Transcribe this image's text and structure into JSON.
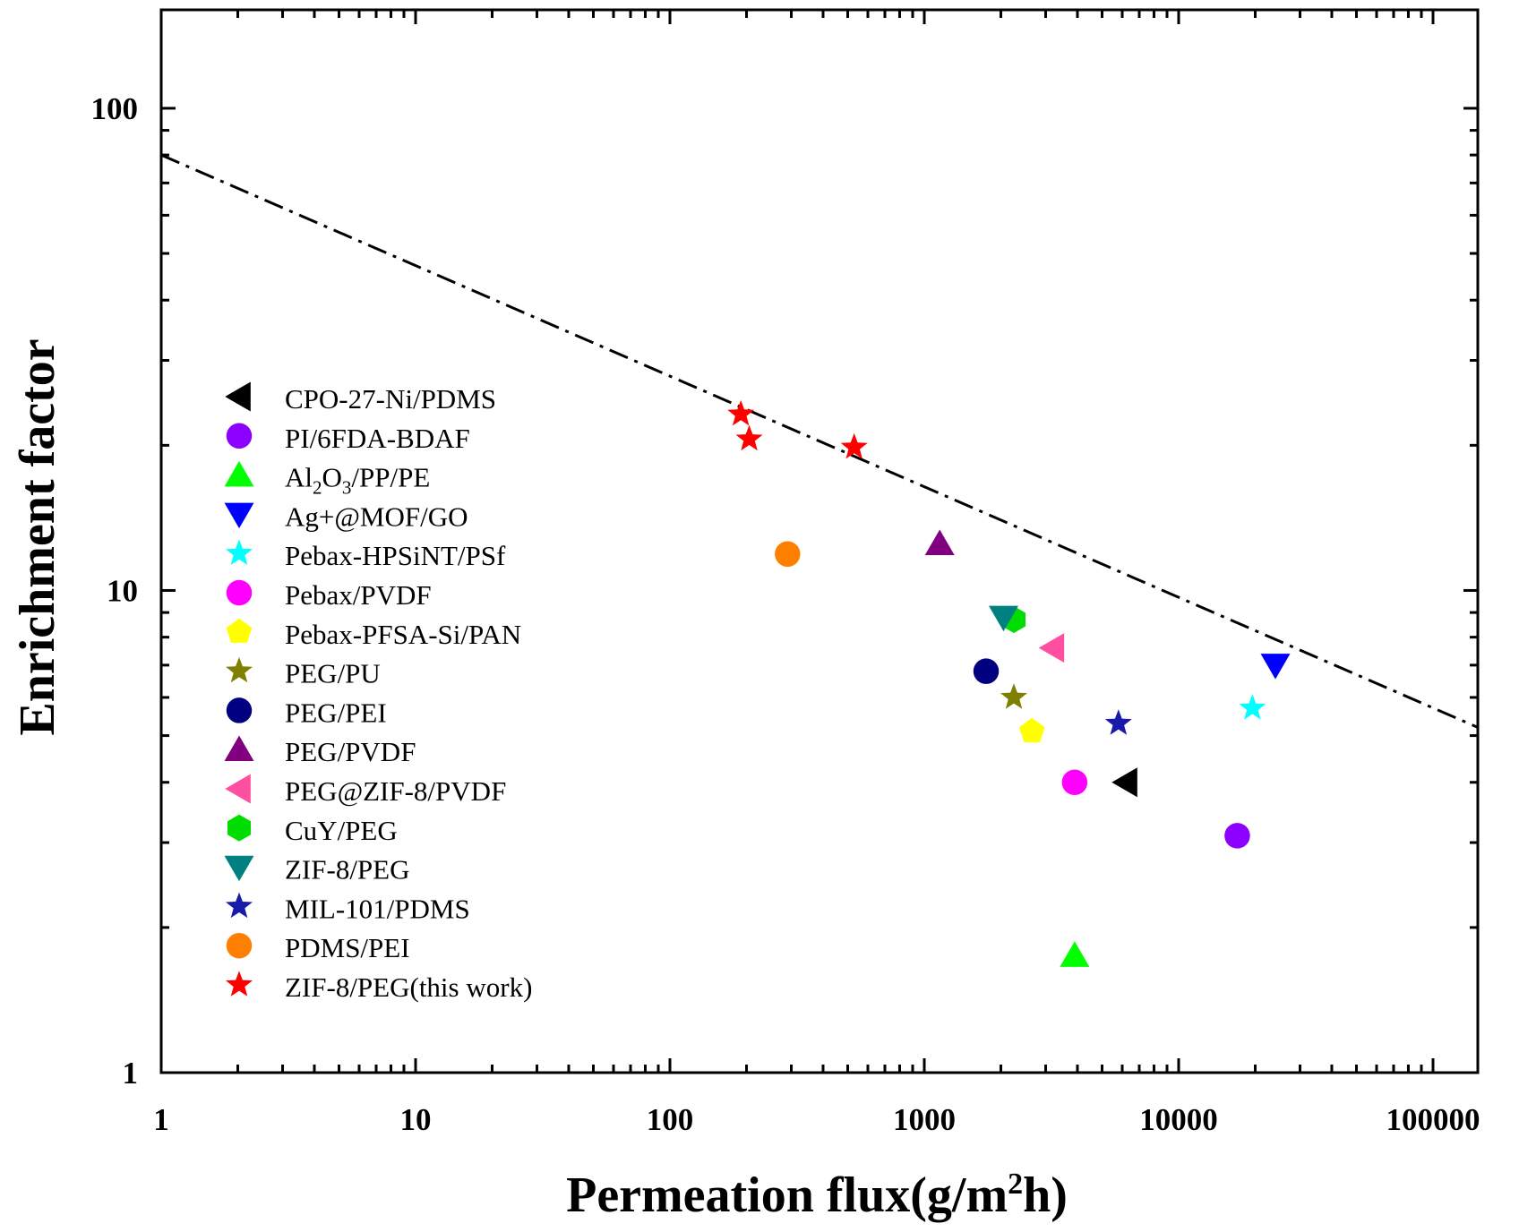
{
  "chart_data": {
    "type": "scatter",
    "title": "",
    "xlabel": "Permeation flux(g/m",
    "xlabel_sup": "2",
    "xlabel_tail": "h)",
    "ylabel": "Enrichment factor",
    "xscale": "log",
    "yscale": "log",
    "xlim": [
      1,
      150000
    ],
    "ylim": [
      1,
      160
    ],
    "x_ticks": [
      1,
      10,
      100,
      1000,
      10000,
      100000
    ],
    "x_tick_labels": [
      "1",
      "10",
      "100",
      "1000",
      "10000",
      "100000"
    ],
    "y_ticks": [
      1,
      10,
      100
    ],
    "y_tick_labels": [
      "1",
      "10",
      "100"
    ],
    "trend_line": {
      "style": "dash-dot",
      "color": "#000000",
      "points": [
        [
          1,
          80
        ],
        [
          150000,
          5.2
        ]
      ]
    },
    "legend_position": "center-left",
    "series": [
      {
        "name": "CPO-27-Ni/PDMS",
        "marker": "triangle-left",
        "color": "#000000",
        "points": [
          [
            6200,
            4.0
          ]
        ]
      },
      {
        "name": "PI/6FDA-BDAF",
        "marker": "circle",
        "color": "#8B00FF",
        "points": [
          [
            17000,
            3.1
          ]
        ]
      },
      {
        "name": "Al2O3/PP/PE",
        "name_parts": [
          "Al",
          "2",
          "O",
          "3",
          "/PP/PE"
        ],
        "marker": "triangle-up",
        "color": "#00FF00",
        "points": [
          [
            3900,
            1.75
          ]
        ]
      },
      {
        "name": "Ag+@MOF/GO",
        "marker": "triangle-down",
        "color": "#0000FF",
        "points": [
          [
            24000,
            7.0
          ]
        ]
      },
      {
        "name": "Pebax-HPSiNT/PSf",
        "marker": "star",
        "color": "#00FFFF",
        "points": [
          [
            19500,
            5.7
          ]
        ]
      },
      {
        "name": "Pebax/PVDF",
        "marker": "circle",
        "color": "#FF00FF",
        "points": [
          [
            3900,
            4.0
          ]
        ]
      },
      {
        "name": "Pebax-PFSA-Si/PAN",
        "marker": "pentagon",
        "color": "#FFFF00",
        "points": [
          [
            2650,
            5.1
          ]
        ]
      },
      {
        "name": "PEG/PU",
        "marker": "star",
        "color": "#808000",
        "points": [
          [
            2250,
            6.0
          ]
        ]
      },
      {
        "name": "PEG/PEI",
        "marker": "circle",
        "color": "#000080",
        "points": [
          [
            1750,
            6.8
          ]
        ]
      },
      {
        "name": "PEG/PVDF",
        "marker": "triangle-up",
        "color": "#800080",
        "points": [
          [
            1150,
            12.5
          ]
        ]
      },
      {
        "name": "PEG@ZIF-8/PVDF",
        "marker": "triangle-left",
        "color": "#FF4FA0",
        "points": [
          [
            3200,
            7.6
          ]
        ]
      },
      {
        "name": "CuY/PEG",
        "marker": "hexagon",
        "color": "#00DD00",
        "points": [
          [
            2250,
            8.7
          ]
        ]
      },
      {
        "name": "ZIF-8/PEG",
        "marker": "triangle-down",
        "color": "#008080",
        "points": [
          [
            2050,
            8.8
          ]
        ]
      },
      {
        "name": "MIL-101/PDMS",
        "marker": "star",
        "color": "#1A1AAA",
        "points": [
          [
            5800,
            5.3
          ]
        ]
      },
      {
        "name": "PDMS/PEI",
        "marker": "circle",
        "color": "#FF8000",
        "points": [
          [
            290,
            11.9
          ]
        ]
      },
      {
        "name": "ZIF-8/PEG(this work)",
        "marker": "star",
        "color": "#FF0000",
        "points": [
          [
            190,
            23.2
          ],
          [
            205,
            20.6
          ],
          [
            530,
            19.8
          ]
        ]
      }
    ]
  }
}
